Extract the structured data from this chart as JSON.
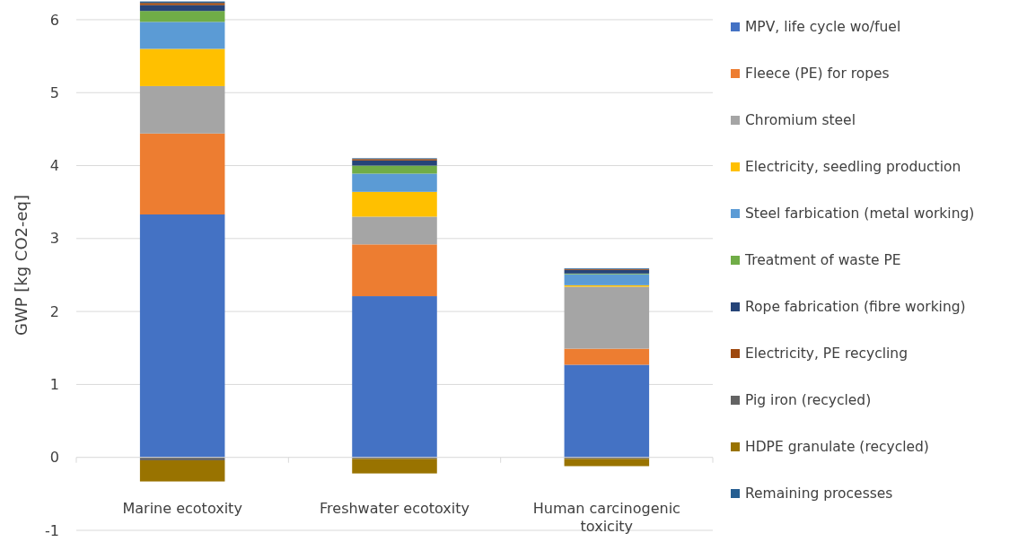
{
  "chart_data": {
    "type": "bar",
    "stacked": true,
    "ylabel": "GWP [kg CO2-eq]",
    "categories": [
      "Marine ecotoxity",
      "Freshwater ecotoxity",
      "Human carcinogenic toxicity"
    ],
    "ylim": [
      -1,
      6.27
    ],
    "yticks": [
      -1,
      0,
      1,
      2,
      3,
      4,
      5,
      6
    ],
    "grid": "y",
    "legend": "right",
    "series": [
      {
        "name": "MPV, life cycle wo/fuel",
        "color": "#4472c4",
        "values": [
          3.33,
          2.21,
          1.27
        ]
      },
      {
        "name": "Fleece (PE) for ropes",
        "color": "#ed7d31",
        "values": [
          1.11,
          0.71,
          0.22
        ]
      },
      {
        "name": "Chromium steel",
        "color": "#a5a5a5",
        "values": [
          0.65,
          0.38,
          0.85
        ]
      },
      {
        "name": "Electricity, seedling production",
        "color": "#ffc000",
        "values": [
          0.51,
          0.34,
          0.02
        ]
      },
      {
        "name": "Steel farbication (metal working)",
        "color": "#5b9bd5",
        "values": [
          0.37,
          0.25,
          0.15
        ]
      },
      {
        "name": "Treatment of waste PE",
        "color": "#70ad47",
        "values": [
          0.15,
          0.11,
          0.01
        ]
      },
      {
        "name": "Rope fabrication (fibre working)",
        "color": "#264478",
        "values": [
          0.08,
          0.07,
          0.05
        ]
      },
      {
        "name": "Electricity, PE recycling",
        "color": "#9e480e",
        "values": [
          0.03,
          0.02,
          0.01
        ]
      },
      {
        "name": "Pig iron (recycled)",
        "color": "#636363",
        "values": [
          -0.04,
          -0.02,
          -0.02
        ]
      },
      {
        "name": "HDPE granulate (recycled)",
        "color": "#997300",
        "values": [
          -0.29,
          -0.2,
          -0.1
        ]
      },
      {
        "name": "Remaining processes",
        "color": "#255e91",
        "values": [
          0.02,
          0.01,
          0.01
        ]
      }
    ]
  }
}
